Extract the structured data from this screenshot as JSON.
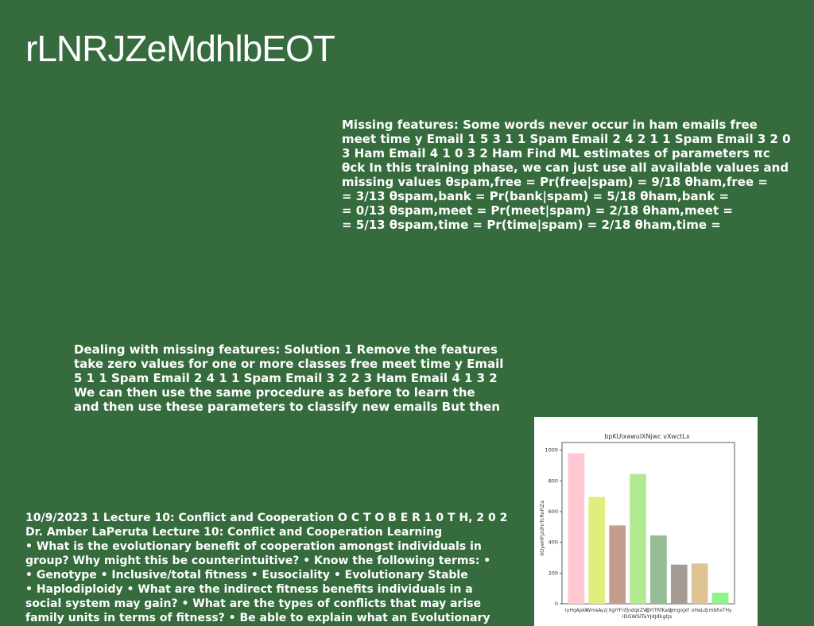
{
  "slide": {
    "title": "rLNRJZeMdhlbEOT",
    "block1": [
      "Missing features: Some words never occur in ham emails free",
      "meet time y Email 1 5 3 1 1 Spam Email 2 4 2 1 1 Spam Email 3 2 0",
      "3 Ham Email 4 1 0 3 2 Ham Find ML estimates of parameters πc",
      "θck In this training phase, we can just use all available values and",
      "missing values θspam,free = Pr(free|spam) = 9/18 θham,free =",
      "= 3/13 θspam,bank = Pr(bank|spam) = 5/18 θham,bank =",
      "= 0/13 θspam,meet = Pr(meet|spam) = 2/18 θham,meet =",
      "= 5/13 θspam,time = Pr(time|spam) = 2/18 θham,time ="
    ],
    "block2": [
      "Dealing with missing features: Solution 1 Remove the features",
      "take zero values for one or more classes free meet time y Email",
      "5 1 1 Spam Email 2 4 1 1 Spam Email 3 2 2 3 Ham Email 4 1 3 2",
      "We can then use the same procedure as before to learn the",
      "and then use these parameters to classify new emails But then"
    ],
    "block3": [
      "10/9/2023 1 Lecture 10: Conflict and Cooperation O C T O B E R 1 0 T H, 2 0 2",
      "Dr. Amber LaPeruta Lecture 10: Conflict and Cooperation Learning",
      "• What is the evolutionary benefit of cooperation amongst individuals in",
      "group? Why might this be counterintuitive? • Know the following terms: •",
      "• Genotype • Inclusive/total fitness • Eusociality • Evolutionary Stable",
      "• Haplodiploidy • What are the indirect fitness benefits individuals in a",
      "social system may gain? • What are the types of conflicts that may arise",
      "family units in terms of fitness? • Be able to explain what an Evolutionary"
    ]
  },
  "chart_data": {
    "type": "bar",
    "title": "bpKUixawulXNjwc vXwctLx",
    "xlabel": "iDGWSlTaYJdJdkgtJs",
    "ylabel": "XOyeHFjzdhrTcRoFiZa",
    "categories": [
      "ryHqApkk",
      "WmsAyzj",
      "XgIYFnf",
      "JndqkZVp",
      "QYITRfKaO",
      "gmgojxf",
      "oHaLdJ",
      "mbRxTHy"
    ],
    "values": [
      980,
      695,
      510,
      845,
      445,
      255,
      262,
      72
    ],
    "colors": [
      "#ffc7d2",
      "#e0ee7b",
      "#c49d8f",
      "#b2ea92",
      "#97bd96",
      "#a49b95",
      "#dcc494",
      "#8ef58a"
    ],
    "ylim": [
      0,
      1050
    ],
    "yticks": [
      0,
      200,
      400,
      600,
      800,
      1000
    ]
  }
}
